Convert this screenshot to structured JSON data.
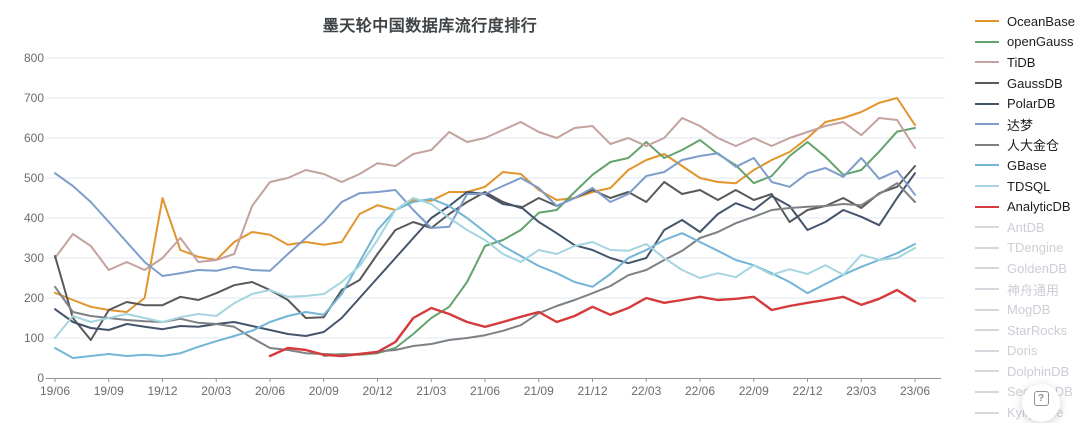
{
  "page": {
    "title": "墨天轮中国数据库流行度排行"
  },
  "help_button": {
    "label": "?"
  },
  "chart_data": {
    "type": "line",
    "title": "墨天轮中国数据库流行度排行",
    "xlabel": "",
    "ylabel": "",
    "ylim": [
      0,
      800
    ],
    "y_ticks": [
      0,
      100,
      200,
      300,
      400,
      500,
      600,
      700,
      800
    ],
    "grid": true,
    "legend_position": "right",
    "x_quarter_labels": [
      "19/06",
      "19/09",
      "19/12",
      "20/03",
      "20/06",
      "20/09",
      "20/12",
      "21/03",
      "21/06",
      "21/09",
      "21/12",
      "22/03",
      "22/06",
      "22/09",
      "22/12",
      "23/03",
      "23/06"
    ],
    "x_months_span": 49,
    "series": [
      {
        "name": "OceanBase",
        "color": "#e2952c",
        "active": true,
        "values": [
          213,
          195,
          178,
          170,
          165,
          200,
          450,
          320,
          303,
          295,
          340,
          365,
          358,
          333,
          340,
          333,
          340,
          410,
          432,
          420,
          445,
          443,
          465,
          465,
          478,
          515,
          510,
          470,
          445,
          450,
          465,
          475,
          520,
          545,
          560,
          530,
          500,
          490,
          487,
          520,
          545,
          565,
          600,
          640,
          650,
          665,
          688,
          700,
          632
        ]
      },
      {
        "name": "openGauss",
        "color": "#64a36d",
        "active": true,
        "values": [
          null,
          null,
          null,
          null,
          null,
          null,
          null,
          null,
          null,
          null,
          null,
          null,
          null,
          null,
          null,
          55,
          60,
          58,
          62,
          75,
          110,
          150,
          178,
          240,
          330,
          345,
          370,
          413,
          420,
          465,
          508,
          540,
          550,
          590,
          550,
          570,
          595,
          560,
          532,
          487,
          505,
          555,
          590,
          553,
          508,
          520,
          566,
          616,
          625
        ]
      },
      {
        "name": "TiDB",
        "color": "#c4a29d",
        "active": true,
        "values": [
          300,
          360,
          330,
          270,
          290,
          270,
          300,
          350,
          290,
          295,
          310,
          430,
          490,
          500,
          520,
          510,
          490,
          510,
          537,
          530,
          560,
          570,
          615,
          590,
          600,
          620,
          640,
          615,
          600,
          625,
          630,
          585,
          600,
          580,
          600,
          650,
          630,
          600,
          580,
          600,
          580,
          600,
          615,
          630,
          640,
          607,
          650,
          645,
          575
        ]
      },
      {
        "name": "GaussDB",
        "color": "#595959",
        "active": true,
        "values": [
          305,
          150,
          95,
          170,
          190,
          182,
          182,
          203,
          195,
          212,
          232,
          240,
          220,
          195,
          150,
          152,
          220,
          245,
          310,
          370,
          390,
          375,
          410,
          440,
          465,
          440,
          425,
          450,
          430,
          450,
          470,
          450,
          465,
          440,
          490,
          460,
          470,
          445,
          470,
          445,
          460,
          390,
          420,
          430,
          450,
          425,
          462,
          478,
          530
        ]
      },
      {
        "name": "PolarDB",
        "color": "#44546a",
        "active": true,
        "values": [
          172,
          140,
          125,
          120,
          135,
          128,
          122,
          130,
          128,
          135,
          140,
          130,
          120,
          110,
          105,
          115,
          150,
          200,
          250,
          300,
          350,
          400,
          430,
          465,
          460,
          435,
          428,
          390,
          362,
          332,
          320,
          300,
          287,
          300,
          370,
          395,
          365,
          410,
          437,
          420,
          455,
          430,
          370,
          390,
          420,
          403,
          382,
          450,
          512
        ]
      },
      {
        "name": "达梦",
        "color": "#7e9dcb",
        "active": true,
        "values": [
          512,
          480,
          440,
          390,
          340,
          290,
          255,
          262,
          270,
          268,
          278,
          270,
          268,
          310,
          350,
          390,
          440,
          462,
          465,
          470,
          420,
          375,
          378,
          460,
          460,
          480,
          500,
          475,
          430,
          450,
          475,
          440,
          460,
          505,
          515,
          545,
          555,
          562,
          528,
          550,
          490,
          478,
          512,
          525,
          503,
          550,
          498,
          518,
          458
        ]
      },
      {
        "name": "人大金仓",
        "color": "#7e8184",
        "active": true,
        "values": [
          228,
          165,
          155,
          150,
          145,
          142,
          140,
          148,
          138,
          135,
          128,
          100,
          75,
          70,
          62,
          60,
          58,
          60,
          66,
          70,
          80,
          85,
          95,
          100,
          107,
          118,
          132,
          162,
          180,
          195,
          212,
          230,
          257,
          270,
          295,
          318,
          350,
          365,
          387,
          403,
          420,
          425,
          428,
          430,
          435,
          432,
          460,
          487,
          440
        ]
      },
      {
        "name": "GBase",
        "color": "#72b5d5",
        "active": true,
        "values": [
          75,
          50,
          55,
          60,
          55,
          58,
          55,
          62,
          78,
          92,
          105,
          118,
          140,
          155,
          165,
          158,
          210,
          290,
          370,
          420,
          440,
          448,
          430,
          400,
          365,
          330,
          305,
          280,
          262,
          240,
          228,
          260,
          300,
          320,
          345,
          362,
          340,
          318,
          295,
          282,
          262,
          240,
          212,
          235,
          258,
          278,
          295,
          312,
          335
        ]
      },
      {
        "name": "TDSQL",
        "color": "#a5d5df",
        "active": true,
        "values": [
          100,
          155,
          140,
          150,
          160,
          150,
          140,
          152,
          160,
          155,
          187,
          210,
          220,
          203,
          205,
          210,
          240,
          280,
          345,
          420,
          450,
          435,
          400,
          370,
          345,
          310,
          290,
          320,
          310,
          330,
          340,
          320,
          318,
          335,
          300,
          270,
          250,
          262,
          252,
          282,
          258,
          272,
          260,
          282,
          258,
          308,
          295,
          300,
          325
        ]
      },
      {
        "name": "AnalyticDB",
        "color": "#d53a3c",
        "active": true,
        "values": [
          null,
          null,
          null,
          null,
          null,
          null,
          null,
          null,
          null,
          null,
          null,
          null,
          55,
          75,
          70,
          58,
          55,
          60,
          65,
          90,
          150,
          175,
          160,
          140,
          128,
          140,
          153,
          165,
          140,
          155,
          178,
          158,
          175,
          200,
          188,
          195,
          203,
          195,
          198,
          203,
          170,
          180,
          188,
          195,
          203,
          183,
          198,
          220,
          192
        ]
      },
      {
        "name": "AntDB",
        "color": "#d5d7dd",
        "active": false,
        "values": []
      },
      {
        "name": "TDengine",
        "color": "#d5d7dd",
        "active": false,
        "values": []
      },
      {
        "name": "GoldenDB",
        "color": "#d5d7dd",
        "active": false,
        "values": []
      },
      {
        "name": "神舟通用",
        "color": "#d5d7dd",
        "active": false,
        "values": []
      },
      {
        "name": "MogDB",
        "color": "#d5d7dd",
        "active": false,
        "values": []
      },
      {
        "name": "StarRocks",
        "color": "#d5d7dd",
        "active": false,
        "values": []
      },
      {
        "name": "Doris",
        "color": "#d5d7dd",
        "active": false,
        "values": []
      },
      {
        "name": "DolphinDB",
        "color": "#d5d7dd",
        "active": false,
        "values": []
      },
      {
        "name": "SequoiaDB",
        "color": "#d5d7dd",
        "active": false,
        "values": []
      },
      {
        "name": "Kyligence",
        "color": "#d5d7dd",
        "active": false,
        "values": []
      }
    ],
    "style": {
      "grid_color": "#e0eaf3",
      "axis_color": "#8f9399",
      "label_color": "#686d71"
    }
  }
}
